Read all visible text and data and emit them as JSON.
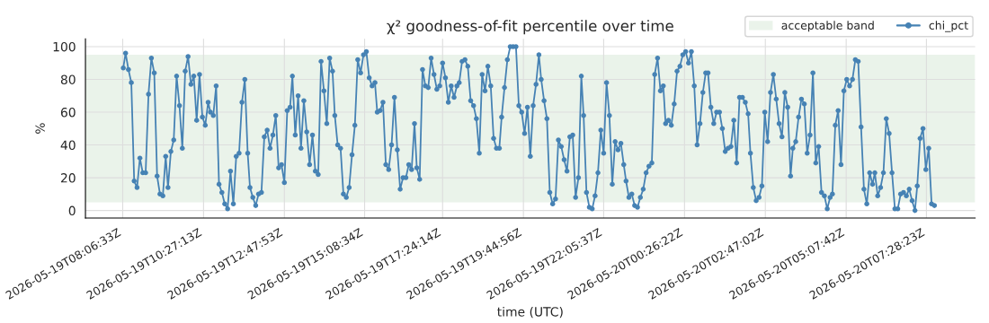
{
  "chart_data": {
    "type": "line",
    "title": "χ² goodness-of-fit percentile over time",
    "xlabel": "time (UTC)",
    "ylabel": "%",
    "xlim": [
      "2026-05-19T07:01",
      "2026-05-20T08:53"
    ],
    "ylim": [
      -4.6,
      104.8
    ],
    "xticks": [
      {
        "value": "2026-05-19T08:06",
        "label": "2026-05-19T08:06:33Z"
      },
      {
        "value": "2026-05-19T10:27",
        "label": "2026-05-19T10:27:13Z"
      },
      {
        "value": "2026-05-19T12:48",
        "label": "2026-05-19T12:47:53Z"
      },
      {
        "value": "2026-05-19T15:08",
        "label": "2026-05-19T15:08:34Z"
      },
      {
        "value": "2026-05-19T17:24",
        "label": "2026-05-19T17:24:14Z"
      },
      {
        "value": "2026-05-19T19:45",
        "label": "2026-05-19T19:44:56Z"
      },
      {
        "value": "2026-05-19T22:05",
        "label": "2026-05-19T22:05:37Z"
      },
      {
        "value": "2026-05-20T00:26",
        "label": "2026-05-20T00:26:22Z"
      },
      {
        "value": "2026-05-20T02:47",
        "label": "2026-05-20T02:47:02Z"
      },
      {
        "value": "2026-05-20T05:08",
        "label": "2026-05-20T05:07:42Z"
      },
      {
        "value": "2026-05-20T07:28",
        "label": "2026-05-20T07:28:23Z"
      }
    ],
    "yticks": [
      0,
      20,
      40,
      60,
      80,
      100
    ],
    "grid": true,
    "legend": "top right",
    "marker": "circle",
    "line_style": "solid",
    "bands": [
      {
        "axis": "y",
        "from": 5,
        "to": 95,
        "label": "acceptable band",
        "color": "#eaf3ea"
      }
    ],
    "series": [
      {
        "name": "chi_pct",
        "color": "#4682b4",
        "x": [
          "2026-05-19T08:07",
          "2026-05-19T08:11",
          "2026-05-19T08:16",
          "2026-05-19T08:21",
          "2026-05-19T08:26",
          "2026-05-19T08:31",
          "2026-05-19T08:36",
          "2026-05-19T08:41",
          "2026-05-19T08:46",
          "2026-05-19T08:51",
          "2026-05-19T08:56",
          "2026-05-19T09:01",
          "2026-05-19T09:06",
          "2026-05-19T09:11",
          "2026-05-19T09:16",
          "2026-05-19T09:21",
          "2026-05-19T09:25",
          "2026-05-19T09:30",
          "2026-05-19T09:35",
          "2026-05-19T09:40",
          "2026-05-19T09:45",
          "2026-05-19T09:50",
          "2026-05-19T09:55",
          "2026-05-19T10:00",
          "2026-05-19T10:05",
          "2026-05-19T10:10",
          "2026-05-19T10:15",
          "2026-05-19T10:20",
          "2026-05-19T10:25",
          "2026-05-19T10:30",
          "2026-05-19T10:35",
          "2026-05-19T10:39",
          "2026-05-19T10:44",
          "2026-05-19T10:49",
          "2026-05-19T10:54",
          "2026-05-19T10:59",
          "2026-05-19T11:04",
          "2026-05-19T11:09",
          "2026-05-19T11:14",
          "2026-05-19T11:19",
          "2026-05-19T11:24",
          "2026-05-19T11:29",
          "2026-05-19T11:34",
          "2026-05-19T11:39",
          "2026-05-19T11:44",
          "2026-05-19T11:48",
          "2026-05-19T11:53",
          "2026-05-19T11:58",
          "2026-05-19T12:03",
          "2026-05-19T12:08",
          "2026-05-19T12:13",
          "2026-05-19T12:18",
          "2026-05-19T12:23",
          "2026-05-19T12:28",
          "2026-05-19T12:33",
          "2026-05-19T12:38",
          "2026-05-19T12:43",
          "2026-05-19T12:48",
          "2026-05-19T12:53",
          "2026-05-19T12:58",
          "2026-05-19T13:02",
          "2026-05-19T13:07",
          "2026-05-19T13:12",
          "2026-05-19T13:17",
          "2026-05-19T13:22",
          "2026-05-19T13:27",
          "2026-05-19T13:32",
          "2026-05-19T13:37",
          "2026-05-19T13:42",
          "2026-05-19T13:47",
          "2026-05-19T13:52",
          "2026-05-19T13:57",
          "2026-05-19T14:02",
          "2026-05-19T14:07",
          "2026-05-19T14:12",
          "2026-05-19T14:16",
          "2026-05-19T14:21",
          "2026-05-19T14:26",
          "2026-05-19T14:31",
          "2026-05-19T14:36",
          "2026-05-19T14:41",
          "2026-05-19T14:46",
          "2026-05-19T14:51",
          "2026-05-19T14:56",
          "2026-05-19T15:01",
          "2026-05-19T15:06",
          "2026-05-19T15:11",
          "2026-05-19T15:16",
          "2026-05-19T15:21",
          "2026-05-19T15:26",
          "2026-05-19T15:30",
          "2026-05-19T15:35",
          "2026-05-19T15:40",
          "2026-05-19T15:45",
          "2026-05-19T15:50",
          "2026-05-19T15:55",
          "2026-05-19T16:00",
          "2026-05-19T16:05",
          "2026-05-19T16:10",
          "2026-05-19T16:15",
          "2026-05-19T16:20",
          "2026-05-19T16:25",
          "2026-05-19T16:30",
          "2026-05-19T16:35",
          "2026-05-19T16:39",
          "2026-05-19T16:44",
          "2026-05-19T16:49",
          "2026-05-19T16:54",
          "2026-05-19T16:59",
          "2026-05-19T17:04",
          "2026-05-19T17:09",
          "2026-05-19T17:14",
          "2026-05-19T17:19",
          "2026-05-19T17:24",
          "2026-05-19T17:29",
          "2026-05-19T17:34",
          "2026-05-19T17:39",
          "2026-05-19T17:44",
          "2026-05-19T17:49",
          "2026-05-19T17:53",
          "2026-05-19T17:58",
          "2026-05-19T18:03",
          "2026-05-19T18:08",
          "2026-05-19T18:13",
          "2026-05-19T18:18",
          "2026-05-19T18:23",
          "2026-05-19T18:28",
          "2026-05-19T18:33",
          "2026-05-19T18:38",
          "2026-05-19T18:43",
          "2026-05-19T18:48",
          "2026-05-19T18:53",
          "2026-05-19T18:58",
          "2026-05-19T19:03",
          "2026-05-19T19:07",
          "2026-05-19T19:12",
          "2026-05-19T19:17",
          "2026-05-19T19:22",
          "2026-05-19T19:27",
          "2026-05-19T19:32",
          "2026-05-19T19:37",
          "2026-05-19T19:42",
          "2026-05-19T19:47",
          "2026-05-19T19:52",
          "2026-05-19T19:57",
          "2026-05-19T20:02",
          "2026-05-19T20:07",
          "2026-05-19T20:12",
          "2026-05-19T20:16",
          "2026-05-19T20:21",
          "2026-05-19T20:26",
          "2026-05-19T20:31",
          "2026-05-19T20:36",
          "2026-05-19T20:41",
          "2026-05-19T20:46",
          "2026-05-19T20:51",
          "2026-05-19T20:56",
          "2026-05-19T21:01",
          "2026-05-19T21:06",
          "2026-05-19T21:11",
          "2026-05-19T21:16",
          "2026-05-19T21:21",
          "2026-05-19T21:26",
          "2026-05-19T21:30",
          "2026-05-19T21:35",
          "2026-05-19T21:40",
          "2026-05-19T21:45",
          "2026-05-19T21:50",
          "2026-05-19T21:55",
          "2026-05-19T22:00",
          "2026-05-19T22:05",
          "2026-05-19T22:10",
          "2026-05-19T22:15",
          "2026-05-19T22:20",
          "2026-05-19T22:25",
          "2026-05-19T22:30",
          "2026-05-19T22:35",
          "2026-05-19T22:40",
          "2026-05-19T22:44",
          "2026-05-19T22:49",
          "2026-05-19T22:54",
          "2026-05-19T22:59",
          "2026-05-19T23:04",
          "2026-05-19T23:09",
          "2026-05-19T23:14",
          "2026-05-19T23:19",
          "2026-05-19T23:24",
          "2026-05-19T23:29",
          "2026-05-19T23:34",
          "2026-05-19T23:39",
          "2026-05-19T23:44",
          "2026-05-19T23:49",
          "2026-05-19T23:53",
          "2026-05-19T23:58",
          "2026-05-20T00:03",
          "2026-05-20T00:08",
          "2026-05-20T00:13",
          "2026-05-20T00:18",
          "2026-05-20T00:23",
          "2026-05-20T00:28",
          "2026-05-20T00:33",
          "2026-05-20T00:38",
          "2026-05-20T00:43",
          "2026-05-20T00:48",
          "2026-05-20T00:53",
          "2026-05-20T00:58",
          "2026-05-20T01:03",
          "2026-05-20T01:07",
          "2026-05-20T01:12",
          "2026-05-20T01:17",
          "2026-05-20T01:22",
          "2026-05-20T01:27",
          "2026-05-20T01:32",
          "2026-05-20T01:37",
          "2026-05-20T01:42",
          "2026-05-20T01:47",
          "2026-05-20T01:52",
          "2026-05-20T01:57",
          "2026-05-20T02:02",
          "2026-05-20T02:07",
          "2026-05-20T02:12",
          "2026-05-20T02:17",
          "2026-05-20T02:21",
          "2026-05-20T02:26",
          "2026-05-20T02:31",
          "2026-05-20T02:36",
          "2026-05-20T02:41",
          "2026-05-20T02:46",
          "2026-05-20T02:51",
          "2026-05-20T02:56",
          "2026-05-20T03:01",
          "2026-05-20T03:06",
          "2026-05-20T03:11",
          "2026-05-20T03:16",
          "2026-05-20T03:21",
          "2026-05-20T03:26",
          "2026-05-20T03:31",
          "2026-05-20T03:35",
          "2026-05-20T03:40",
          "2026-05-20T03:45",
          "2026-05-20T03:50",
          "2026-05-20T03:55",
          "2026-05-20T04:00",
          "2026-05-20T04:05",
          "2026-05-20T04:10",
          "2026-05-20T04:15",
          "2026-05-20T04:20",
          "2026-05-20T04:25",
          "2026-05-20T04:30",
          "2026-05-20T04:35",
          "2026-05-20T04:40",
          "2026-05-20T04:44",
          "2026-05-20T04:49",
          "2026-05-20T04:54",
          "2026-05-20T04:59",
          "2026-05-20T05:04",
          "2026-05-20T05:09",
          "2026-05-20T05:14",
          "2026-05-20T05:19",
          "2026-05-20T05:24",
          "2026-05-20T05:29",
          "2026-05-20T05:34",
          "2026-05-20T05:39",
          "2026-05-20T05:44",
          "2026-05-20T05:49",
          "2026-05-20T05:54",
          "2026-05-20T05:58",
          "2026-05-20T06:03",
          "2026-05-20T06:08",
          "2026-05-20T06:13",
          "2026-05-20T06:18",
          "2026-05-20T06:23",
          "2026-05-20T06:28",
          "2026-05-20T06:33",
          "2026-05-20T06:38",
          "2026-05-20T06:43",
          "2026-05-20T06:48",
          "2026-05-20T06:53",
          "2026-05-20T06:58",
          "2026-05-20T07:03",
          "2026-05-20T07:08",
          "2026-05-20T07:12",
          "2026-05-20T07:17",
          "2026-05-20T07:22",
          "2026-05-20T07:27",
          "2026-05-20T07:32",
          "2026-05-20T07:37",
          "2026-05-20T07:42"
        ],
        "values": [
          87,
          96,
          86,
          78,
          18,
          14,
          32,
          23,
          23,
          71,
          93,
          84,
          21,
          10,
          9,
          33,
          14,
          36,
          43,
          82,
          64,
          38,
          85,
          94,
          77,
          82,
          55,
          83,
          57,
          52,
          66,
          60,
          58,
          76,
          16,
          11,
          4,
          1,
          24,
          4,
          33,
          35,
          66,
          80,
          35,
          14,
          8,
          3,
          10,
          11,
          45,
          49,
          38,
          46,
          58,
          26,
          28,
          17,
          61,
          63,
          82,
          46,
          70,
          38,
          67,
          48,
          28,
          46,
          24,
          22,
          91,
          73,
          53,
          93,
          85,
          58,
          40,
          38,
          10,
          8,
          14,
          34,
          52,
          92,
          84,
          95,
          97,
          81,
          76,
          78,
          60,
          61,
          66,
          28,
          25,
          40,
          69,
          37,
          13,
          20,
          20,
          28,
          25,
          53,
          26,
          19,
          86,
          76,
          75,
          93,
          83,
          74,
          76,
          90,
          81,
          66,
          76,
          69,
          76,
          78,
          91,
          92,
          88,
          67,
          64,
          56,
          35,
          83,
          73,
          88,
          76,
          44,
          38,
          38,
          57,
          75,
          92,
          100,
          100,
          100,
          64,
          60,
          47,
          63,
          33,
          64,
          77,
          95,
          80,
          67,
          56,
          11,
          4,
          7,
          43,
          39,
          31,
          24,
          45,
          46,
          8,
          20,
          82,
          58,
          11,
          2,
          1,
          9,
          23,
          49,
          35,
          78,
          58,
          16,
          42,
          37,
          41,
          28,
          18,
          8,
          10,
          3,
          2,
          8,
          13,
          23,
          27,
          29,
          83,
          93,
          73,
          76,
          53,
          55,
          52,
          65,
          85,
          88,
          95,
          97,
          90,
          97,
          76,
          40,
          53,
          72,
          84,
          84,
          63,
          53,
          60,
          60,
          50,
          36,
          38,
          39,
          55,
          29,
          69,
          69,
          66,
          59,
          35,
          14,
          6,
          8,
          15,
          60,
          42,
          72,
          83,
          68,
          53,
          45,
          72,
          63,
          21,
          38,
          42,
          57,
          68,
          65,
          35,
          46,
          84,
          29,
          39,
          11,
          9,
          1,
          8,
          10,
          52,
          61,
          28,
          73,
          80,
          76,
          80,
          92,
          91,
          51,
          13,
          4,
          23,
          16,
          23,
          9,
          14,
          23,
          56,
          47,
          23,
          1,
          1,
          10,
          11,
          9,
          13,
          6,
          0,
          15,
          44,
          50,
          25,
          38,
          4,
          3
        ]
      }
    ]
  }
}
